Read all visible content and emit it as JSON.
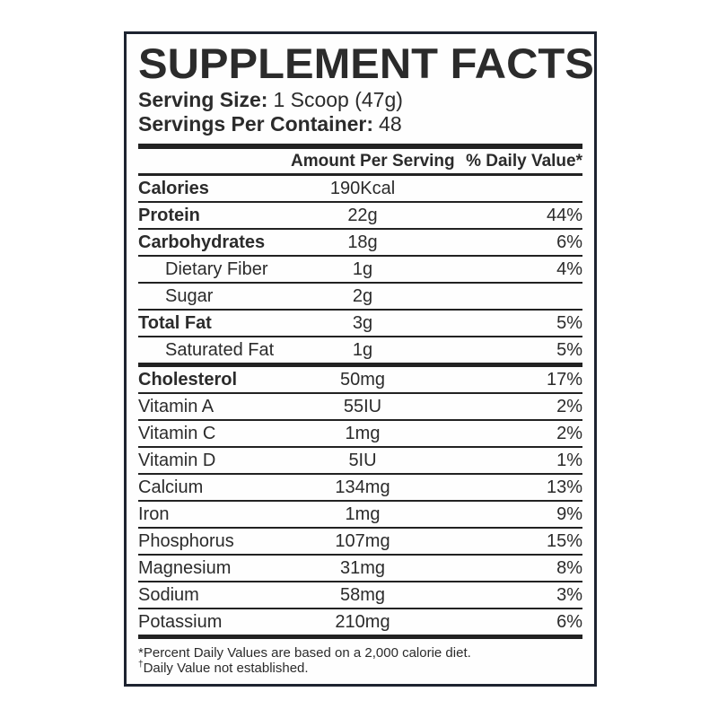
{
  "label": {
    "title": "SUPPLEMENT FACTS",
    "serving_size_label": "Serving Size:",
    "serving_size_value": "1 Scoop (47g)",
    "servings_label": "Servings Per Container:",
    "servings_value": "48",
    "columns": {
      "amount": "Amount Per Serving",
      "daily_value": "% Daily Value*"
    },
    "rows": [
      {
        "name": "Calories",
        "amount": "190Kcal",
        "dv": "",
        "bold": true,
        "indent": false,
        "thick_after": false
      },
      {
        "name": "Protein",
        "amount": "22g",
        "dv": "44%",
        "bold": true,
        "indent": false,
        "thick_after": false
      },
      {
        "name": "Carbohydrates",
        "amount": "18g",
        "dv": "6%",
        "bold": true,
        "indent": false,
        "thick_after": false
      },
      {
        "name": "Dietary Fiber",
        "amount": "1g",
        "dv": "4%",
        "bold": false,
        "indent": true,
        "thick_after": false
      },
      {
        "name": "Sugar",
        "amount": "2g",
        "dv": "",
        "bold": false,
        "indent": true,
        "thick_after": false
      },
      {
        "name": "Total Fat",
        "amount": "3g",
        "dv": "5%",
        "bold": true,
        "indent": false,
        "thick_after": false
      },
      {
        "name": "Saturated Fat",
        "amount": "1g",
        "dv": "5%",
        "bold": false,
        "indent": true,
        "thick_after": true
      },
      {
        "name": "Cholesterol",
        "amount": "50mg",
        "dv": "17%",
        "bold": true,
        "indent": false,
        "thick_after": false
      },
      {
        "name": "Vitamin A",
        "amount": "55IU",
        "dv": "2%",
        "bold": false,
        "indent": false,
        "thick_after": false
      },
      {
        "name": "Vitamin C",
        "amount": "1mg",
        "dv": "2%",
        "bold": false,
        "indent": false,
        "thick_after": false
      },
      {
        "name": "Vitamin D",
        "amount": "5IU",
        "dv": "1%",
        "bold": false,
        "indent": false,
        "thick_after": false
      },
      {
        "name": "Calcium",
        "amount": "134mg",
        "dv": "13%",
        "bold": false,
        "indent": false,
        "thick_after": false
      },
      {
        "name": "Iron",
        "amount": "1mg",
        "dv": "9%",
        "bold": false,
        "indent": false,
        "thick_after": false
      },
      {
        "name": "Phosphorus",
        "amount": "107mg",
        "dv": "15%",
        "bold": false,
        "indent": false,
        "thick_after": false
      },
      {
        "name": "Magnesium",
        "amount": "31mg",
        "dv": "8%",
        "bold": false,
        "indent": false,
        "thick_after": false
      },
      {
        "name": "Sodium",
        "amount": "58mg",
        "dv": "3%",
        "bold": false,
        "indent": false,
        "thick_after": false
      },
      {
        "name": "Potassium",
        "amount": "210mg",
        "dv": "6%",
        "bold": false,
        "indent": false,
        "thick_after": true
      }
    ],
    "footnotes": [
      {
        "prefix": "*",
        "text": "Percent Daily Values are based on a 2,000 calorie diet.",
        "sup": false
      },
      {
        "prefix": "†",
        "text": "Daily Value not established.",
        "sup": true
      }
    ]
  },
  "colors": {
    "text": "#2b2b2b",
    "line": "#222222",
    "border": "#1d2330",
    "background": "#ffffff"
  }
}
